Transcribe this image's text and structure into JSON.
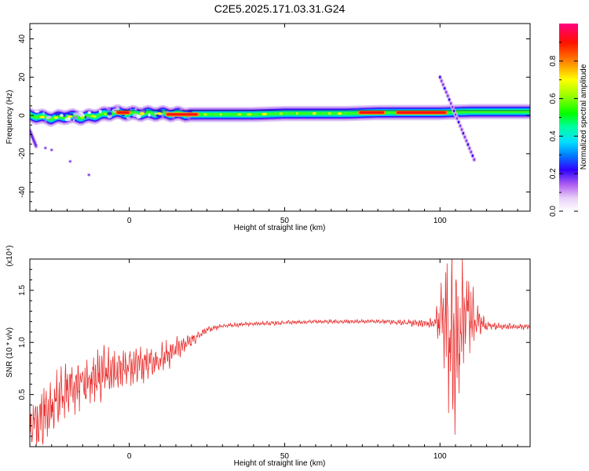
{
  "title": "C2E5.2025.171.03.31.G24",
  "colors": {
    "snr_line": "#e8302f",
    "ridge": "#e8302f",
    "frame": "#000000"
  },
  "chart_data": [
    {
      "type": "heatmap",
      "xlabel": "Height of straight line (km)",
      "ylabel": "Frequency (Hz)",
      "xlim": [
        -32,
        129
      ],
      "ylim": [
        -50,
        48
      ],
      "x_ticks": [
        0,
        50,
        100
      ],
      "y_ticks": [
        40,
        20,
        0,
        -20,
        -40
      ],
      "colorbar": {
        "label": "Normalized spectral amplitude",
        "range": [
          0,
          1
        ],
        "ticks": [
          0.0,
          0.2,
          0.4,
          0.6,
          0.8
        ],
        "tick_labels": [
          "0.0",
          "0.2",
          "0.4",
          "0.6",
          "0.8"
        ]
      },
      "ridge": {
        "x": [
          -32,
          -25,
          -20,
          -15,
          -10,
          -5,
          0,
          10,
          20,
          30,
          40,
          50,
          60,
          70,
          80,
          90,
          100,
          110,
          120,
          129
        ],
        "y": [
          0.0,
          -1.5,
          -0.5,
          -1.0,
          0.0,
          1.5,
          1.0,
          1.0,
          0.5,
          0.5,
          0.5,
          1.0,
          1.0,
          1.0,
          1.5,
          1.5,
          1.5,
          2.0,
          2.0,
          2.0
        ]
      },
      "strong_segments": [
        {
          "x": [
            -4,
            0
          ],
          "y": 1.5
        },
        {
          "x": [
            12,
            22
          ],
          "y": 0.5
        },
        {
          "x": [
            74,
            82
          ],
          "y": 1.5
        },
        {
          "x": [
            86,
            102
          ],
          "y": 1.5
        }
      ],
      "branches": [
        {
          "x": [
            100,
            111
          ],
          "y": [
            20,
            -23
          ]
        },
        {
          "x": [
            -32,
            -30
          ],
          "y": [
            -8,
            -16
          ]
        }
      ],
      "scattered_points": [
        {
          "x": -27,
          "y": -17
        },
        {
          "x": -25,
          "y": -18
        },
        {
          "x": -19,
          "y": -24
        },
        {
          "x": -13,
          "y": -31
        }
      ]
    },
    {
      "type": "line",
      "xlabel": "Height of straight line (km)",
      "ylabel": "SNR (10 * v/v)",
      "scale_label": "(x10⁴)",
      "xlim": [
        -32,
        129
      ],
      "ylim": [
        0.0,
        1.8
      ],
      "x_ticks": [
        0,
        50,
        100
      ],
      "y_ticks": [
        0.5,
        1.0,
        1.5
      ],
      "y_tick_labels": [
        "0.5",
        "1.0",
        "1.5"
      ],
      "series": [
        {
          "x": [
            -32,
            -28,
            -24,
            -20,
            -16,
            -12,
            -8,
            -4,
            0,
            4,
            8,
            12,
            16,
            20,
            25,
            30,
            40,
            50,
            60,
            70,
            80,
            90,
            98,
            101,
            103,
            105,
            107,
            109,
            111,
            115,
            120,
            129
          ],
          "y": [
            0.2,
            0.3,
            0.4,
            0.55,
            0.6,
            0.65,
            0.7,
            0.72,
            0.75,
            0.78,
            0.82,
            0.88,
            0.95,
            1.02,
            1.12,
            1.16,
            1.18,
            1.19,
            1.2,
            1.2,
            1.2,
            1.19,
            1.18,
            1.25,
            1.1,
            0.95,
            1.15,
            1.3,
            1.2,
            1.16,
            1.15,
            1.15
          ],
          "amplitude": [
            0.22,
            0.28,
            0.3,
            0.3,
            0.28,
            0.26,
            0.24,
            0.22,
            0.2,
            0.18,
            0.16,
            0.14,
            0.1,
            0.06,
            0.03,
            0.02,
            0.02,
            0.02,
            0.02,
            0.02,
            0.02,
            0.03,
            0.05,
            0.45,
            0.8,
            0.8,
            0.55,
            0.4,
            0.25,
            0.04,
            0.03,
            0.03
          ]
        }
      ]
    }
  ]
}
